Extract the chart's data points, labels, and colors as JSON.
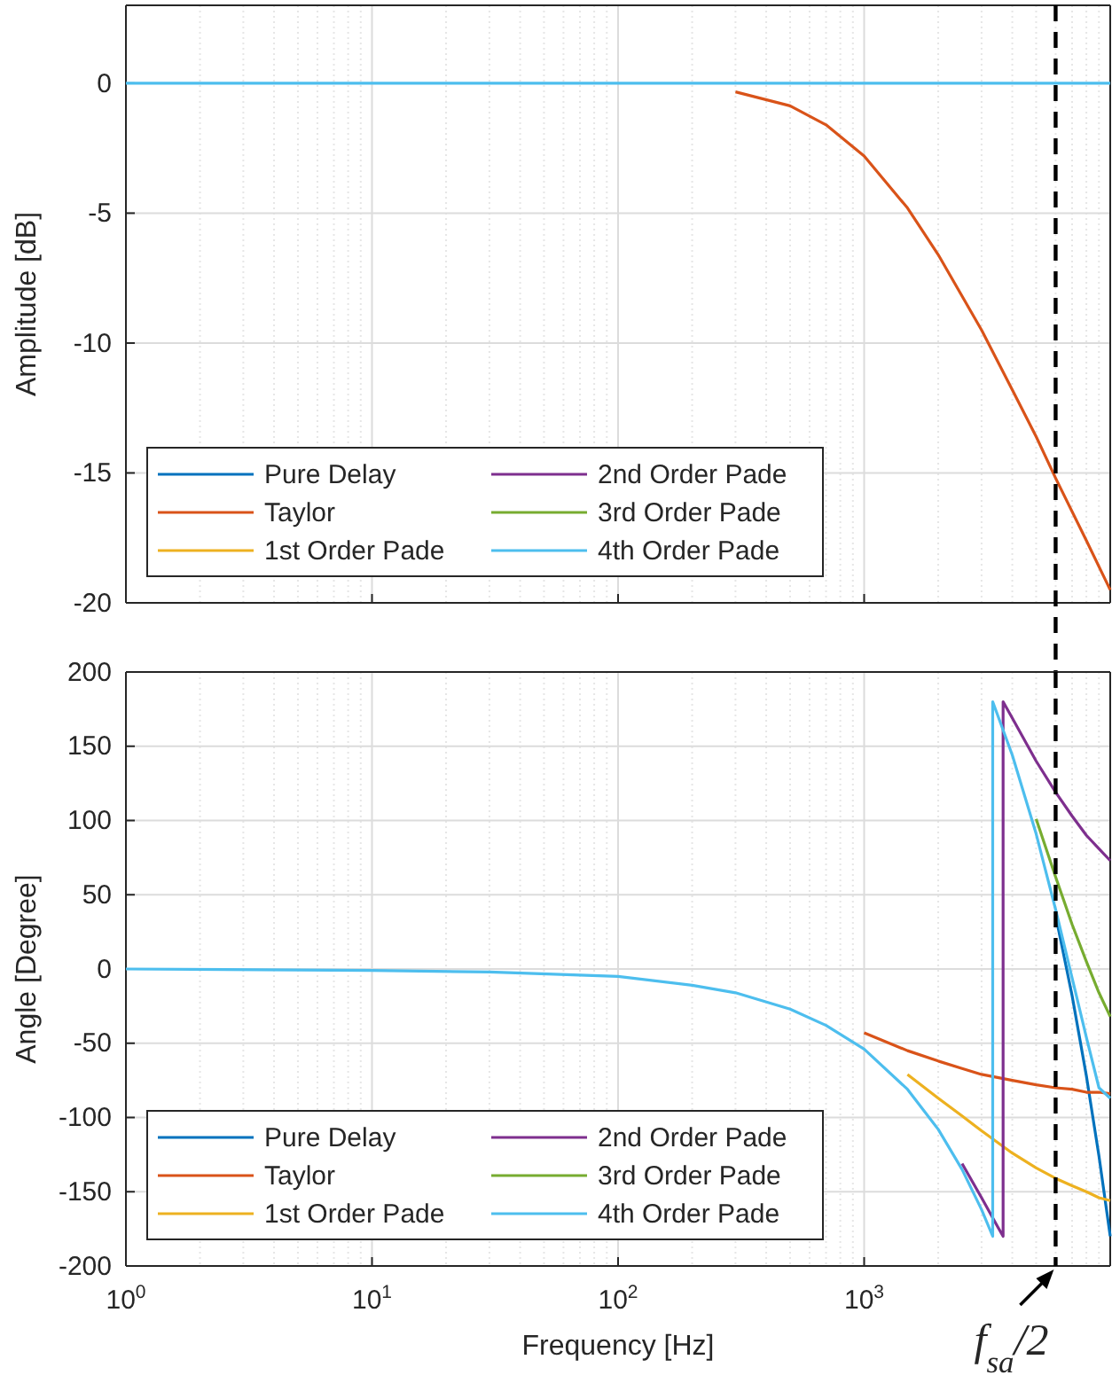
{
  "chart_data": [
    {
      "type": "line",
      "ylabel": "Amplitude [dB]",
      "log": "x",
      "grid": true,
      "legend": "bottom left",
      "tick_labels": "y",
      "xlim": [
        1,
        10000
      ],
      "xticks": [
        {
          "value": 1,
          "label": null
        },
        {
          "value": 10,
          "label": null
        },
        {
          "value": 100,
          "label": null
        },
        {
          "value": 1000,
          "label": null
        }
      ],
      "ylim": [
        -20,
        3
      ],
      "yticks": [
        -20,
        -15,
        -10,
        -5,
        0
      ],
      "ref_lines": [
        {
          "axis": "x",
          "value": 6000,
          "color": "#000000",
          "line_style": "dashed"
        }
      ],
      "series": [
        {
          "name": "Pure Delay",
          "color": "#0072bd"
        },
        {
          "name": "Taylor",
          "color": "#d95319",
          "x": [
            300,
            500,
            700,
            1000,
            1500,
            2000,
            3000,
            4000,
            5000,
            6000,
            8000,
            10000
          ],
          "values": [
            -0.33,
            -0.87,
            -1.6,
            -2.8,
            -4.8,
            -6.6,
            -9.5,
            -11.8,
            -13.6,
            -15.2,
            -17.6,
            -19.5
          ]
        },
        {
          "name": "1st Order Pade",
          "color": "#edb120"
        },
        {
          "name": "2nd Order Pade",
          "color": "#7e2f8e"
        },
        {
          "name": "3rd Order Pade",
          "color": "#77ac30"
        },
        {
          "name": "4th Order Pade",
          "color": "#4dbeee",
          "x": [
            1,
            10000
          ],
          "values": [
            0,
            0
          ]
        }
      ]
    },
    {
      "type": "line",
      "xlabel": "Frequency [Hz]",
      "ylabel": "Angle [Degree]",
      "log": "x",
      "grid": true,
      "legend": "bottom left",
      "xlim": [
        1,
        10000
      ],
      "xticks": [
        {
          "value": 1,
          "label": "10$^{0}$"
        },
        {
          "value": 10,
          "label": "10$^{1}$"
        },
        {
          "value": 100,
          "label": "10$^{2}$"
        },
        {
          "value": 1000,
          "label": "10$^{3}$"
        }
      ],
      "ylim": [
        -200,
        200
      ],
      "yticks": [
        -200,
        -150,
        -100,
        -50,
        0,
        50,
        100,
        150,
        200
      ],
      "ref_lines": [
        {
          "axis": "x",
          "value": 6000,
          "color": "#000000",
          "line_style": "dashed",
          "label": "f$_{sa}$/2"
        }
      ],
      "series": [
        {
          "name": "Pure Delay",
          "color": "#0072bd",
          "x": [
            6000,
            7000,
            8000,
            9000,
            10000
          ],
          "values": [
            36,
            -18,
            -72,
            -126,
            -180
          ]
        },
        {
          "name": "Taylor",
          "color": "#d95319",
          "x": [
            1000,
            1500,
            2000,
            2500,
            3000,
            4000,
            5000,
            6000,
            7000,
            8000,
            9000,
            10000
          ],
          "values": [
            -43,
            -55,
            -62,
            -67,
            -71,
            -75,
            -78,
            -80,
            -81,
            -83,
            -83,
            -84
          ]
        },
        {
          "name": "1st Order Pade",
          "color": "#edb120",
          "x": [
            1500,
            2000,
            2500,
            3000,
            4000,
            5000,
            6000,
            7000,
            8000,
            9000,
            10000
          ],
          "values": [
            -71,
            -87,
            -99,
            -109,
            -124,
            -134,
            -141,
            -146,
            -150,
            -154,
            -156
          ]
        },
        {
          "name": "2nd Order Pade",
          "color": "#7e2f8e",
          "x": [
            2500,
            3000,
            3500,
            3670,
            3670,
            4000,
            5000,
            6000,
            7000,
            8000,
            9000,
            10000
          ],
          "values": [
            -131,
            -154,
            -174,
            -180,
            180,
            169,
            140,
            119,
            103,
            90,
            81,
            73
          ]
        },
        {
          "name": "3rd Order Pade",
          "color": "#77ac30",
          "x": [
            5000,
            6000,
            7000,
            8000,
            9000,
            10000
          ],
          "values": [
            101,
            62,
            30,
            5,
            -16,
            -32
          ]
        },
        {
          "name": "4th Order Pade",
          "color": "#4dbeee",
          "x": [
            1,
            10,
            30,
            100,
            200,
            300,
            500,
            700,
            1000,
            1500,
            2000,
            2500,
            3000,
            3330,
            3330,
            4000,
            5000,
            6000,
            7000,
            8000,
            9000,
            10000
          ],
          "values": [
            0,
            -1,
            -2,
            -5,
            -11,
            -16,
            -27,
            -38,
            -54,
            -81,
            -108,
            -135,
            -162,
            -180,
            180,
            144,
            91,
            40,
            -6,
            -46,
            -80,
            -87
          ]
        }
      ]
    }
  ]
}
